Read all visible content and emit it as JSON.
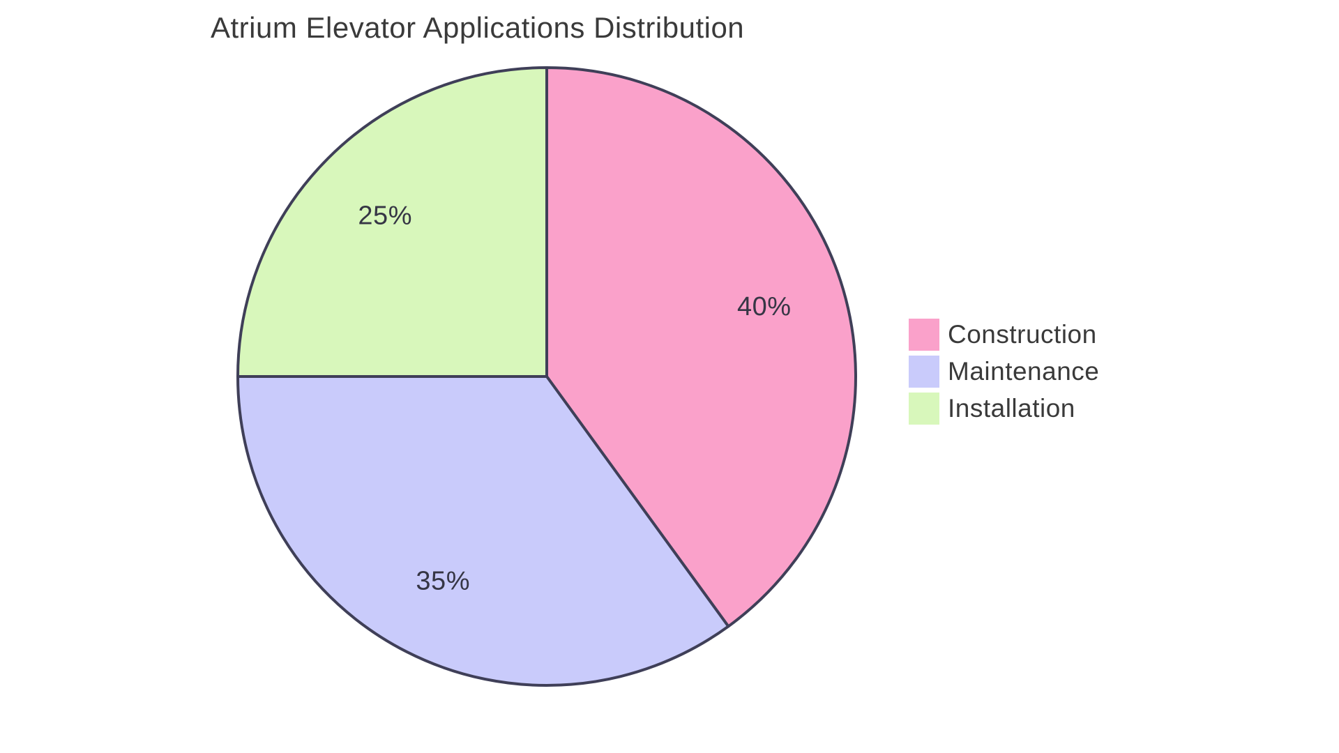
{
  "page": {
    "background": "#FFFFFF"
  },
  "chart_data": {
    "type": "pie",
    "title": "Atrium Elevator Applications Distribution",
    "categories": [
      "Construction",
      "Maintenance",
      "Installation"
    ],
    "values": [
      40,
      35,
      25
    ],
    "unit": "%",
    "slices": [
      {
        "label": "Construction",
        "value": 40,
        "pct_label": "40%",
        "color": "#FAA1CA"
      },
      {
        "label": "Maintenance",
        "value": 35,
        "pct_label": "35%",
        "color": "#C9CBFB"
      },
      {
        "label": "Installation",
        "value": 25,
        "pct_label": "25%",
        "color": "#D8F7BB"
      }
    ],
    "start_angle": "top",
    "direction": "clockwise",
    "stroke_color": "#3F3F58",
    "stroke_width": 4,
    "label_color": "#363645",
    "title_color": "#3A3A3A",
    "legend": {
      "position": "right",
      "items": [
        "Construction",
        "Maintenance",
        "Installation"
      ]
    }
  }
}
